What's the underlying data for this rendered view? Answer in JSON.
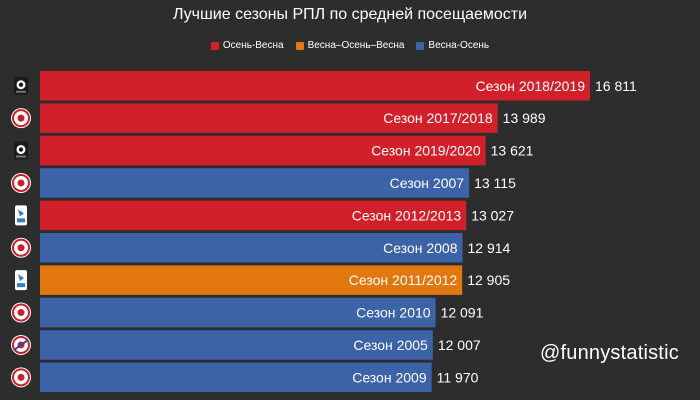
{
  "chart_data": {
    "type": "bar",
    "orientation": "horizontal",
    "title": "Лучшие сезоны РПЛ по средней посещаемости",
    "legend": [
      {
        "name": "Осень-Весна",
        "color": "#d1202a"
      },
      {
        "name": "Весна–Осень–Весна",
        "color": "#e2770f"
      },
      {
        "name": "Весна-Осень",
        "color": "#3c62a8"
      }
    ],
    "categories": [
      "Сезон 2018/2019",
      "Сезон 2017/2018",
      "Сезон 2019/2020",
      "Сезон 2007",
      "Сезон 2012/2013",
      "Сезон 2008",
      "Сезон 2011/2012",
      "Сезон 2010",
      "Сезон 2005",
      "Сезон 2009"
    ],
    "values": [
      16811,
      13989,
      13621,
      13115,
      13027,
      12914,
      12905,
      12091,
      12007,
      11970
    ],
    "value_labels": [
      "16 811",
      "13 989",
      "13 621",
      "13 115",
      "13 027",
      "12 914",
      "12 905",
      "12 091",
      "12 007",
      "11 970"
    ],
    "season_type": [
      "Осень-Весна",
      "Осень-Весна",
      "Осень-Весна",
      "Весна-Осень",
      "Осень-Весна",
      "Весна-Осень",
      "Весна–Осень–Весна",
      "Весна-Осень",
      "Весна-Осень",
      "Весна-Осень"
    ],
    "logo_icons": [
      "rpl-logo-icon",
      "premier-liga-logo-icon",
      "rpl-logo-icon",
      "premier-liga-logo-icon",
      "rfpl-logo-icon",
      "premier-liga-logo-icon",
      "rfpl-logo-icon",
      "premier-liga-logo-icon",
      "premier-liga-2005-logo-icon",
      "premier-liga-logo-icon"
    ]
  },
  "watermark": "@funnystatistic"
}
